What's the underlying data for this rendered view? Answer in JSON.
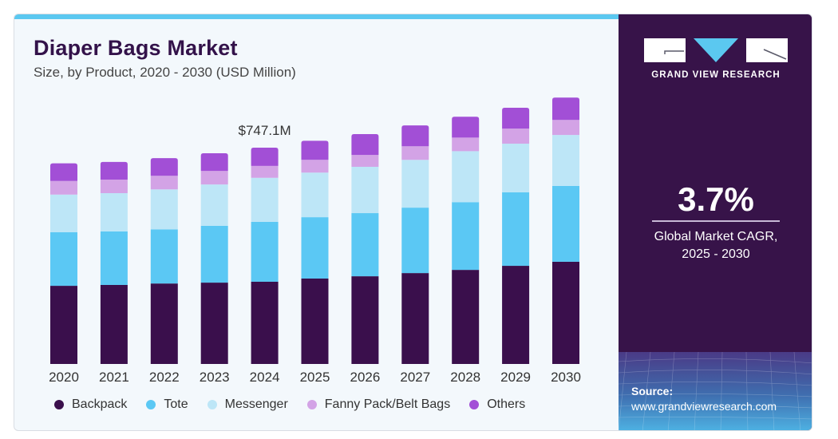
{
  "header": {
    "title": "Diaper Bags Market",
    "subtitle": "Size, by Product, 2020 - 2030 (USD Million)"
  },
  "colors": {
    "accent": "#5bc8f0",
    "panel": "#371349",
    "Backpack": "#3a0f4c",
    "Tote": "#5bc8f4",
    "Messenger": "#bde6f7",
    "Fanny Pack/Belt Bags": "#d3a3e6",
    "Others": "#a24fd6"
  },
  "side_panel": {
    "brand": "GRAND VIEW RESEARCH",
    "cagr_value": "3.7%",
    "cagr_label_line1": "Global Market CAGR,",
    "cagr_label_line2": "2025 - 2030",
    "source_label": "Source:",
    "source_url": "www.grandviewresearch.com"
  },
  "chart_data": {
    "type": "bar",
    "stacked": true,
    "title": "Diaper Bags Market",
    "subtitle": "Size, by Product, 2020 - 2030 (USD Million)",
    "xlabel": "",
    "ylabel": "",
    "ylim": [
      0,
      1000
    ],
    "grid": false,
    "legend_position": "bottom",
    "categories": [
      "2020",
      "2021",
      "2022",
      "2023",
      "2024",
      "2025",
      "2026",
      "2027",
      "2028",
      "2029",
      "2030"
    ],
    "series": [
      {
        "name": "Backpack",
        "values": [
          270,
          273,
          278,
          281,
          284,
          295,
          303,
          314,
          325,
          339,
          353
        ]
      },
      {
        "name": "Tote",
        "values": [
          185,
          185,
          187,
          196,
          207,
          212,
          218,
          226,
          234,
          254,
          262
        ]
      },
      {
        "name": "Messenger",
        "values": [
          130,
          132,
          138,
          143,
          152,
          154,
          160,
          165,
          176,
          168,
          176
        ]
      },
      {
        "name": "Fanny Pack/Belt Bags",
        "values": [
          47,
          47,
          47,
          47,
          41,
          44,
          41,
          47,
          47,
          52,
          52
        ]
      },
      {
        "name": "Others",
        "values": [
          61,
          61,
          61,
          61,
          63,
          66,
          72,
          72,
          72,
          72,
          77
        ]
      }
    ],
    "annotations": [
      {
        "category": "2024",
        "text": "$747.1M",
        "value": 747.1
      }
    ]
  }
}
